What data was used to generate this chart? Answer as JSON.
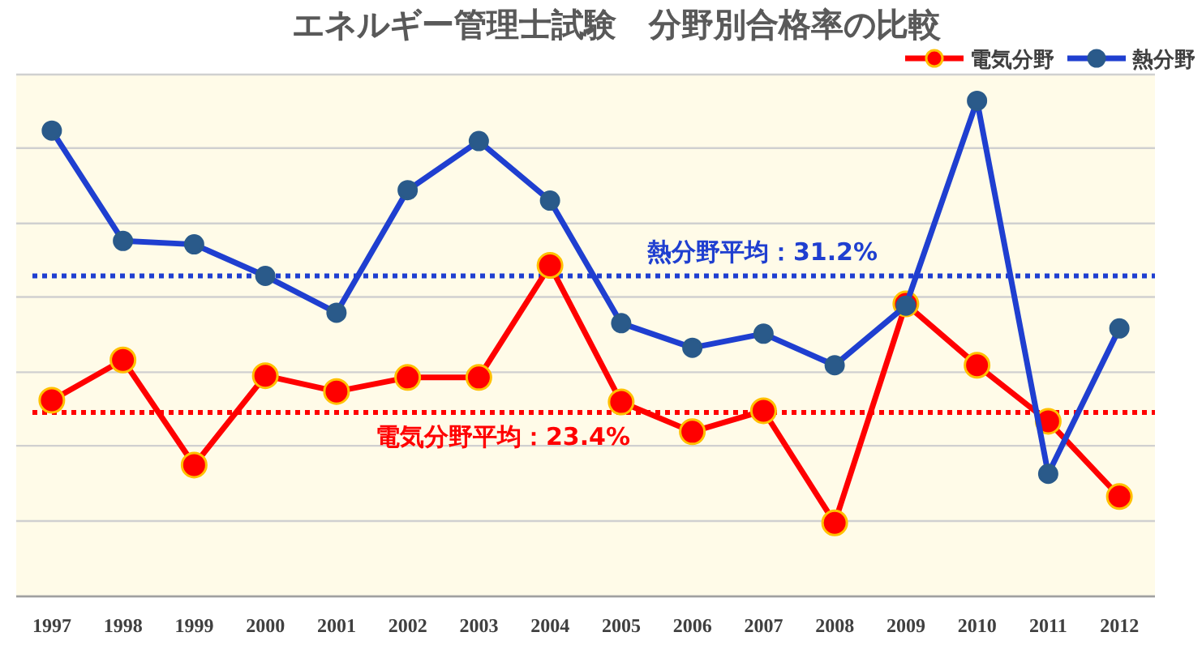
{
  "chart_data": {
    "type": "line",
    "title": "エネルギー管理士試験　分野別合格率の比較",
    "categories": [
      "1997",
      "1998",
      "1999",
      "2000",
      "2001",
      "2002",
      "2003",
      "2004",
      "2005",
      "2006",
      "2007",
      "2008",
      "2009",
      "2010",
      "2011",
      "2012"
    ],
    "series": [
      {
        "name": "電気分野",
        "color": "#ff0000",
        "values": [
          24.1,
          26.4,
          20.4,
          25.5,
          24.6,
          25.4,
          25.4,
          31.8,
          24.0,
          22.3,
          23.5,
          17.1,
          29.6,
          26.1,
          22.9,
          18.6
        ]
      },
      {
        "name": "熱分野",
        "color": "#1f3fd0",
        "values": [
          39.5,
          33.2,
          33.0,
          31.2,
          29.1,
          36.1,
          38.9,
          35.5,
          28.5,
          27.1,
          27.9,
          26.1,
          29.5,
          41.2,
          19.9,
          28.2
        ]
      }
    ],
    "ylim": [
      12.9,
      42.7
    ],
    "yticks": [
      {
        "value": 12.9,
        "label": null
      },
      {
        "value": 17.2,
        "label": null
      },
      {
        "value": 21.5,
        "label": null
      },
      {
        "value": 25.7,
        "label": null
      },
      {
        "value": 30.0,
        "label": null
      },
      {
        "value": 34.2,
        "label": null
      },
      {
        "value": 38.5,
        "label": null
      },
      {
        "value": 42.7,
        "label": null
      }
    ],
    "ref_lines": [
      {
        "axis": "y",
        "value": 31.2,
        "label": "熱分野平均：31.2%",
        "color": "#1f3fd0",
        "line_style": "dotted"
      },
      {
        "axis": "y",
        "value": 23.4,
        "label": "電気分野平均：23.4%",
        "color": "#ff0000",
        "line_style": "dotted"
      }
    ],
    "grid": "y",
    "legend": "top right",
    "marker": "circle",
    "tick_labels": "x"
  }
}
